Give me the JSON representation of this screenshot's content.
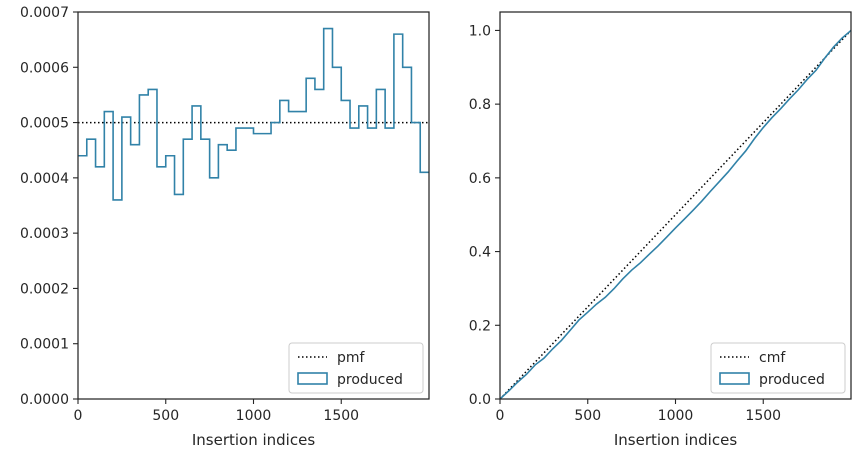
{
  "colors": {
    "series": "#3182a8",
    "reference": "#000000",
    "axes": "#262626",
    "legend_frame": "#cccccc"
  },
  "chart_data": [
    {
      "type": "step",
      "xlabel": "Insertion indices",
      "ylabel": "",
      "xlim": [
        0,
        2000
      ],
      "ylim": [
        0,
        0.0007
      ],
      "xticks": [
        0,
        500,
        1000,
        1500
      ],
      "yticks": [
        0.0,
        0.0001,
        0.0002,
        0.0003,
        0.0004,
        0.0005,
        0.0006,
        0.0007
      ],
      "ytick_labels": [
        "0.0000",
        "0.0001",
        "0.0002",
        "0.0003",
        "0.0004",
        "0.0005",
        "0.0006",
        "0.0007"
      ],
      "legend_position": "lower-right",
      "reference": {
        "name": "pmf",
        "style": "dotted",
        "value": 0.0005
      },
      "series": [
        {
          "name": "produced",
          "bin_width": 50,
          "values": [
            0.00044,
            0.00047,
            0.00042,
            0.00052,
            0.00036,
            0.00051,
            0.00046,
            0.00055,
            0.00056,
            0.00042,
            0.00044,
            0.00037,
            0.00047,
            0.00053,
            0.00047,
            0.0004,
            0.00046,
            0.00045,
            0.00049,
            0.00049,
            0.00048,
            0.00048,
            0.0005,
            0.00054,
            0.00052,
            0.00052,
            0.00058,
            0.00056,
            0.00067,
            0.0006,
            0.00054,
            0.00049,
            0.00053,
            0.00049,
            0.00056,
            0.00049,
            0.00066,
            0.0006,
            0.0005,
            0.00041
          ]
        }
      ]
    },
    {
      "type": "line",
      "xlabel": "Insertion indices",
      "ylabel": "",
      "xlim": [
        0,
        2000
      ],
      "ylim": [
        0,
        1.05
      ],
      "xticks": [
        0,
        500,
        1000,
        1500
      ],
      "yticks": [
        0.0,
        0.2,
        0.4,
        0.6,
        0.8,
        1.0
      ],
      "ytick_labels": [
        "0.0",
        "0.2",
        "0.4",
        "0.6",
        "0.8",
        "1.0"
      ],
      "legend_position": "lower-right",
      "reference": {
        "name": "cmf",
        "style": "dotted",
        "points": [
          [
            0,
            0
          ],
          [
            2000,
            1.0
          ]
        ]
      },
      "series": [
        {
          "name": "produced",
          "x": [
            0,
            50,
            100,
            150,
            200,
            250,
            300,
            350,
            400,
            450,
            500,
            550,
            600,
            650,
            700,
            750,
            800,
            850,
            900,
            950,
            1000,
            1050,
            1100,
            1150,
            1200,
            1250,
            1300,
            1350,
            1400,
            1450,
            1500,
            1550,
            1600,
            1650,
            1700,
            1750,
            1800,
            1850,
            1900,
            1950,
            2000
          ],
          "y": [
            0.0,
            0.022,
            0.0455,
            0.0665,
            0.0925,
            0.1105,
            0.136,
            0.159,
            0.1865,
            0.2145,
            0.2355,
            0.2575,
            0.276,
            0.2995,
            0.326,
            0.3495,
            0.3695,
            0.3925,
            0.415,
            0.4395,
            0.464,
            0.488,
            0.512,
            0.537,
            0.564,
            0.59,
            0.616,
            0.645,
            0.673,
            0.7065,
            0.7365,
            0.7635,
            0.788,
            0.8145,
            0.839,
            0.867,
            0.8915,
            0.9245,
            0.9545,
            0.9795,
            1.0
          ]
        }
      ]
    }
  ]
}
